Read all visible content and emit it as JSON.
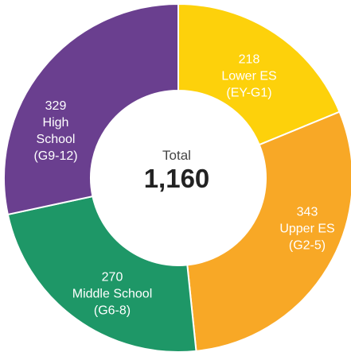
{
  "chart_data": {
    "type": "donut",
    "categories": [
      "Lower ES",
      "Upper ES",
      "Middle School",
      "High School"
    ],
    "grades": [
      "(EY-G1)",
      "(G2-5)",
      "(G6-8)",
      "(G9-12)"
    ],
    "values": [
      218,
      343,
      270,
      329
    ],
    "colors": [
      "#fdd10b",
      "#f8a826",
      "#1e9767",
      "#6a3f8f"
    ],
    "center_label": "Total",
    "total": 1160,
    "total_label": "1,160"
  }
}
